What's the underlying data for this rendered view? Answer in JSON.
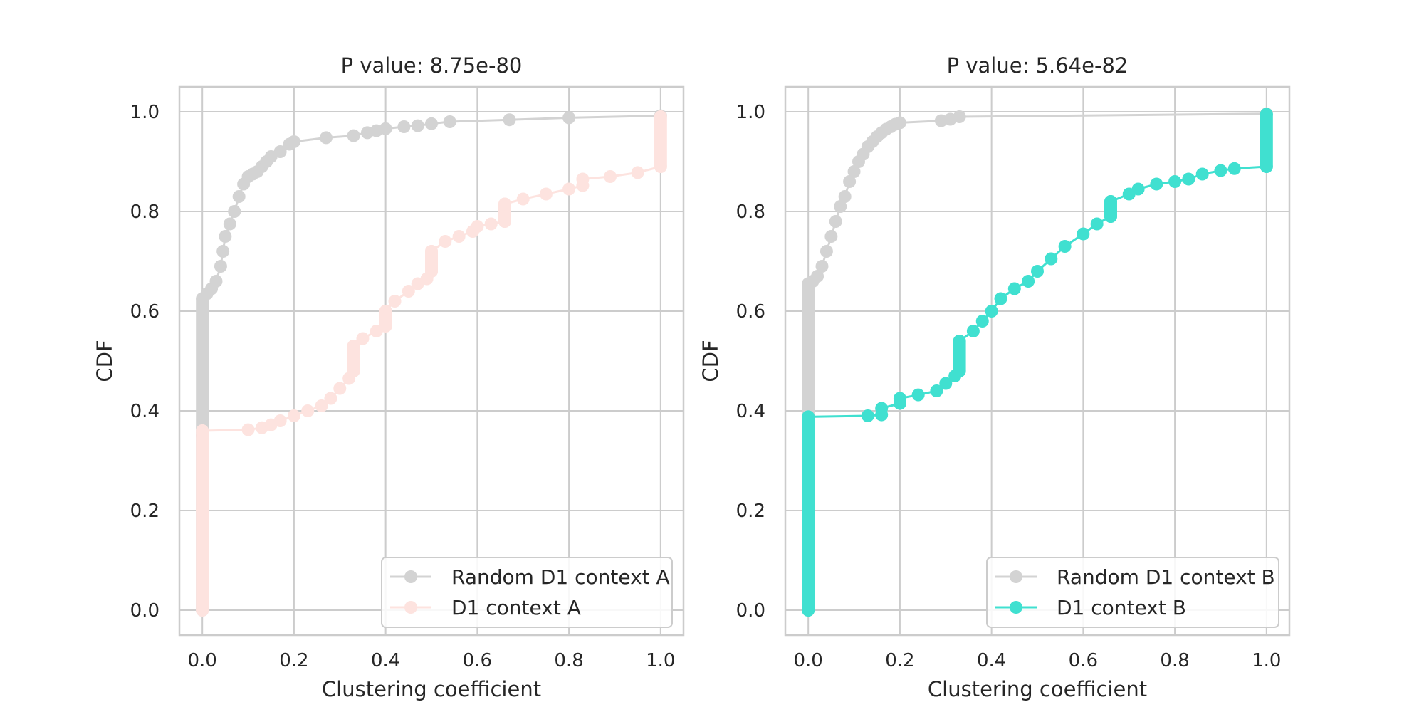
{
  "chart_data": [
    {
      "type": "line",
      "title": "P value: 8.75e-80",
      "xlabel": "Clustering coefficient",
      "ylabel": "CDF",
      "xlim": [
        -0.05,
        1.05
      ],
      "ylim": [
        -0.05,
        1.05
      ],
      "xticks": [
        0.0,
        0.2,
        0.4,
        0.6,
        0.8,
        1.0
      ],
      "xtick_labels": [
        "0.0",
        "0.2",
        "0.4",
        "0.6",
        "0.8",
        "1.0"
      ],
      "yticks": [
        0.0,
        0.2,
        0.4,
        0.6,
        0.8,
        1.0
      ],
      "ytick_labels": [
        "0.0",
        "0.2",
        "0.4",
        "0.6",
        "0.8",
        "1.0"
      ],
      "grid": true,
      "legend_position": "lower-right",
      "series": [
        {
          "name": "Random D1 context A",
          "color": "#d3d3d3",
          "marker": "circle",
          "x": [
            0.0,
            0.0,
            0.0,
            0.01,
            0.02,
            0.03,
            0.04,
            0.045,
            0.05,
            0.06,
            0.07,
            0.08,
            0.09,
            0.1,
            0.11,
            0.12,
            0.13,
            0.14,
            0.15,
            0.17,
            0.19,
            0.2,
            0.27,
            0.33,
            0.36,
            0.38,
            0.4,
            0.44,
            0.47,
            0.5,
            0.54,
            0.67,
            0.8,
            1.0
          ],
          "y": [
            0.0,
            0.35,
            0.625,
            0.635,
            0.645,
            0.66,
            0.69,
            0.72,
            0.75,
            0.775,
            0.8,
            0.83,
            0.855,
            0.87,
            0.875,
            0.88,
            0.89,
            0.9,
            0.91,
            0.92,
            0.935,
            0.94,
            0.948,
            0.952,
            0.958,
            0.962,
            0.966,
            0.97,
            0.972,
            0.976,
            0.98,
            0.984,
            0.988,
            0.992
          ]
        },
        {
          "name": "D1 context A",
          "color": "#fde3df",
          "marker": "circle",
          "x": [
            0.0,
            0.0,
            0.0,
            0.1,
            0.13,
            0.15,
            0.17,
            0.2,
            0.23,
            0.26,
            0.28,
            0.3,
            0.32,
            0.33,
            0.33,
            0.35,
            0.38,
            0.4,
            0.4,
            0.42,
            0.45,
            0.47,
            0.49,
            0.5,
            0.5,
            0.53,
            0.56,
            0.59,
            0.6,
            0.63,
            0.66,
            0.66,
            0.7,
            0.75,
            0.8,
            0.83,
            0.83,
            0.89,
            0.95,
            1.0,
            1.0
          ],
          "y": [
            0.0,
            0.2,
            0.36,
            0.362,
            0.366,
            0.372,
            0.38,
            0.39,
            0.4,
            0.41,
            0.425,
            0.445,
            0.465,
            0.48,
            0.53,
            0.545,
            0.56,
            0.57,
            0.6,
            0.62,
            0.64,
            0.655,
            0.665,
            0.68,
            0.72,
            0.74,
            0.75,
            0.76,
            0.77,
            0.775,
            0.78,
            0.815,
            0.825,
            0.835,
            0.845,
            0.852,
            0.865,
            0.87,
            0.878,
            0.89,
            0.99
          ]
        }
      ]
    },
    {
      "type": "line",
      "title": "P value: 5.64e-82",
      "xlabel": "Clustering coefficient",
      "ylabel": "CDF",
      "xlim": [
        -0.05,
        1.05
      ],
      "ylim": [
        -0.05,
        1.05
      ],
      "xticks": [
        0.0,
        0.2,
        0.4,
        0.6,
        0.8,
        1.0
      ],
      "xtick_labels": [
        "0.0",
        "0.2",
        "0.4",
        "0.6",
        "0.8",
        "1.0"
      ],
      "yticks": [
        0.0,
        0.2,
        0.4,
        0.6,
        0.8,
        1.0
      ],
      "ytick_labels": [
        "0.0",
        "0.2",
        "0.4",
        "0.6",
        "0.8",
        "1.0"
      ],
      "grid": true,
      "legend_position": "lower-right",
      "series": [
        {
          "name": "Random D1 context B",
          "color": "#d3d3d3",
          "marker": "circle",
          "x": [
            0.0,
            0.0,
            0.0,
            0.01,
            0.02,
            0.03,
            0.04,
            0.05,
            0.06,
            0.07,
            0.08,
            0.09,
            0.1,
            0.11,
            0.12,
            0.13,
            0.14,
            0.15,
            0.16,
            0.17,
            0.18,
            0.19,
            0.2,
            0.29,
            0.31,
            0.33,
            1.0
          ],
          "y": [
            0.0,
            0.4,
            0.655,
            0.66,
            0.67,
            0.69,
            0.72,
            0.75,
            0.78,
            0.81,
            0.83,
            0.86,
            0.88,
            0.9,
            0.915,
            0.93,
            0.94,
            0.95,
            0.958,
            0.965,
            0.97,
            0.975,
            0.978,
            0.982,
            0.985,
            0.99,
            0.996
          ]
        },
        {
          "name": "D1 context B",
          "color": "#40e0d0",
          "marker": "circle",
          "x": [
            0.0,
            0.0,
            0.0,
            0.13,
            0.16,
            0.16,
            0.2,
            0.2,
            0.24,
            0.28,
            0.3,
            0.32,
            0.33,
            0.33,
            0.36,
            0.38,
            0.4,
            0.42,
            0.45,
            0.48,
            0.5,
            0.53,
            0.56,
            0.6,
            0.63,
            0.66,
            0.66,
            0.7,
            0.72,
            0.76,
            0.8,
            0.83,
            0.86,
            0.9,
            0.93,
            1.0,
            1.0
          ],
          "y": [
            0.0,
            0.2,
            0.388,
            0.39,
            0.392,
            0.405,
            0.415,
            0.425,
            0.432,
            0.44,
            0.455,
            0.47,
            0.48,
            0.54,
            0.56,
            0.58,
            0.6,
            0.625,
            0.645,
            0.66,
            0.68,
            0.705,
            0.73,
            0.755,
            0.775,
            0.79,
            0.82,
            0.835,
            0.845,
            0.855,
            0.86,
            0.865,
            0.875,
            0.882,
            0.886,
            0.89,
            0.995
          ]
        }
      ]
    }
  ]
}
